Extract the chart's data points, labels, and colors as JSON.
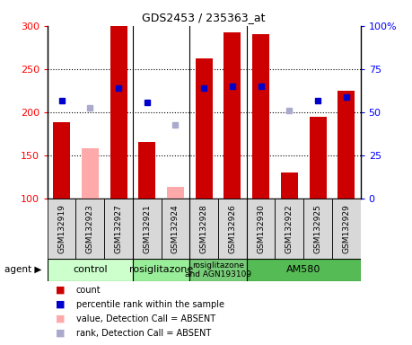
{
  "title": "GDS2453 / 235363_at",
  "samples": [
    "GSM132919",
    "GSM132923",
    "GSM132927",
    "GSM132921",
    "GSM132924",
    "GSM132928",
    "GSM132926",
    "GSM132930",
    "GSM132922",
    "GSM132925",
    "GSM132929"
  ],
  "bar_values": [
    188,
    null,
    300,
    165,
    null,
    262,
    293,
    290,
    130,
    195,
    225
  ],
  "bar_absent_values": [
    null,
    158,
    null,
    null,
    113,
    null,
    null,
    null,
    null,
    null,
    null
  ],
  "rank_values": [
    213,
    null,
    228,
    211,
    null,
    228,
    230,
    230,
    null,
    213,
    218
  ],
  "rank_absent_values": [
    null,
    205,
    null,
    null,
    185,
    null,
    null,
    null,
    202,
    null,
    null
  ],
  "bar_color": "#cc0000",
  "bar_absent_color": "#ffaaaa",
  "rank_color": "#0000cc",
  "rank_absent_color": "#aaaacc",
  "agents": [
    {
      "label": "control",
      "start": 0,
      "end": 3,
      "color": "#ccffcc"
    },
    {
      "label": "rosiglitazone",
      "start": 3,
      "end": 5,
      "color": "#99ee99"
    },
    {
      "label": "rosiglitazone\nand AGN193109",
      "start": 5,
      "end": 7,
      "color": "#77cc77"
    },
    {
      "label": "AM580",
      "start": 7,
      "end": 11,
      "color": "#55bb55"
    }
  ],
  "ymin": 100,
  "ymax": 300,
  "yticks": [
    100,
    150,
    200,
    250,
    300
  ],
  "y2ticks": [
    0,
    25,
    50,
    75,
    100
  ],
  "y2ticklabels": [
    "0",
    "25",
    "50",
    "75",
    "100%"
  ],
  "bar_width": 0.6,
  "legend_items": [
    {
      "label": "count",
      "color": "#cc0000"
    },
    {
      "label": "percentile rank within the sample",
      "color": "#0000cc"
    },
    {
      "label": "value, Detection Call = ABSENT",
      "color": "#ffaaaa"
    },
    {
      "label": "rank, Detection Call = ABSENT",
      "color": "#aaaacc"
    }
  ]
}
